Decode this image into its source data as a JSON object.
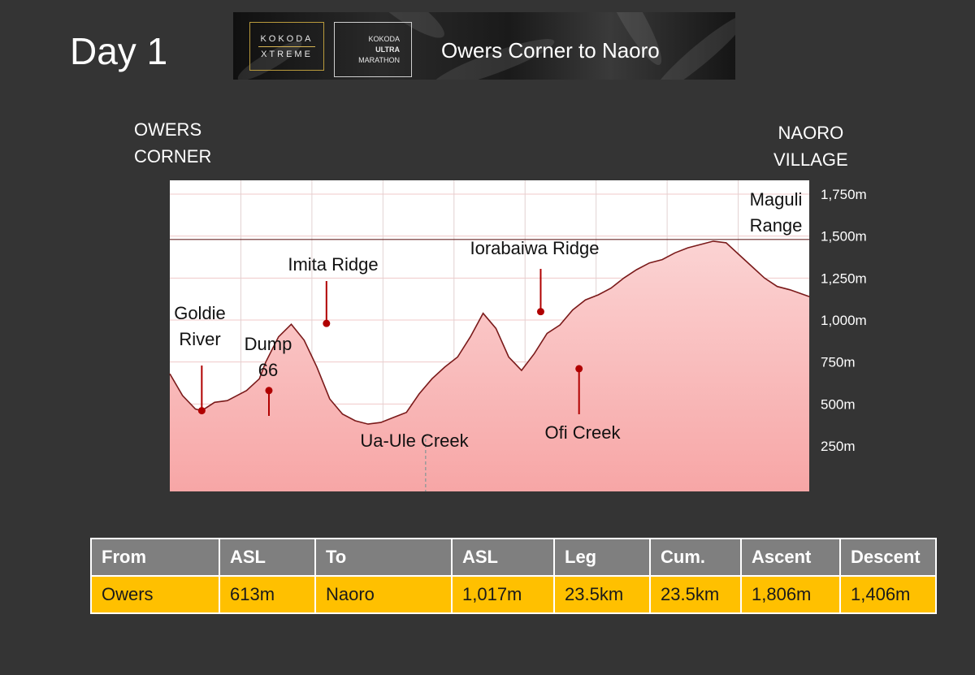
{
  "page": {
    "title": "Day 1",
    "start_label": [
      "OWERS",
      "CORNER"
    ],
    "end_label": [
      "NAORO",
      "VILLAGE"
    ]
  },
  "banner": {
    "logo1_line1": "KOKODA",
    "logo1_line2": "XTREME",
    "logo2_line1": "KOKODA",
    "logo2_line2": "ULTRA",
    "logo2_line3": "MARATHON",
    "title": "Owers Corner to Naoro"
  },
  "chart_data": {
    "type": "area",
    "title": "",
    "xlabel": "",
    "ylabel": "",
    "ylim": [
      0,
      1850
    ],
    "grid": true,
    "fill_color": "#f7a6a6",
    "line_color": "#7a1a1a",
    "marker_color": "#b00000",
    "y_ticks": [
      250,
      500,
      750,
      1000,
      1250,
      1500,
      1750
    ],
    "y_tick_labels": [
      "250m",
      "500m",
      "750m",
      "1,000m",
      "1,250m",
      "1,500m",
      "1,750m"
    ],
    "x": [
      0,
      2,
      4,
      5,
      7,
      9,
      10,
      12,
      14,
      15,
      17,
      19,
      21,
      23,
      25,
      27,
      29,
      31,
      33,
      35,
      37,
      39,
      41,
      43,
      45,
      47,
      49,
      51,
      53,
      55,
      57,
      59,
      61,
      63,
      65,
      67,
      69,
      71,
      73,
      75,
      77,
      79,
      81,
      83,
      85,
      87,
      89,
      91,
      93,
      95,
      97,
      100
    ],
    "elevation_m": [
      680,
      550,
      470,
      460,
      510,
      520,
      540,
      580,
      650,
      750,
      900,
      975,
      880,
      720,
      530,
      440,
      400,
      380,
      390,
      420,
      450,
      560,
      650,
      720,
      780,
      900,
      1040,
      950,
      780,
      700,
      800,
      920,
      970,
      1060,
      1120,
      1150,
      1190,
      1250,
      1300,
      1340,
      1360,
      1400,
      1430,
      1450,
      1470,
      1460,
      1390,
      1320,
      1250,
      1200,
      1180,
      1140
    ],
    "reference_line_m": 1480,
    "points": [
      {
        "name": "Goldie River",
        "x": 5,
        "elevation_m": 460,
        "label_lines": [
          "Goldie",
          "River"
        ]
      },
      {
        "name": "Dump 66",
        "x": 15.5,
        "elevation_m": 580,
        "label_lines": [
          "Dump",
          "66"
        ]
      },
      {
        "name": "Imita Ridge",
        "x": 24.5,
        "elevation_m": 980,
        "label_lines": [
          "Imita Ridge"
        ]
      },
      {
        "name": "Ua-Ule Creek",
        "x": 40,
        "elevation_m": 380,
        "label_lines": [
          "Ua-Ule Creek"
        ]
      },
      {
        "name": "Iorabaiwa Ridge",
        "x": 58,
        "elevation_m": 1050,
        "label_lines": [
          "Iorabaiwa Ridge"
        ]
      },
      {
        "name": "Ofi Creek",
        "x": 64,
        "elevation_m": 710,
        "label_lines": [
          "Ofi Creek"
        ]
      },
      {
        "name": "Maguli Range",
        "x": 90,
        "elevation_m": 1470,
        "label_lines": [
          "Maguli",
          "Range"
        ]
      }
    ]
  },
  "table": {
    "headers": [
      "From",
      "ASL",
      "To",
      "ASL",
      "Leg",
      "Cum.",
      "Ascent",
      "Descent"
    ],
    "rows": [
      [
        "Owers",
        "613m",
        "Naoro",
        "1,017m",
        "23.5km",
        "23.5km",
        "1,806m",
        "1,406m"
      ]
    ]
  }
}
